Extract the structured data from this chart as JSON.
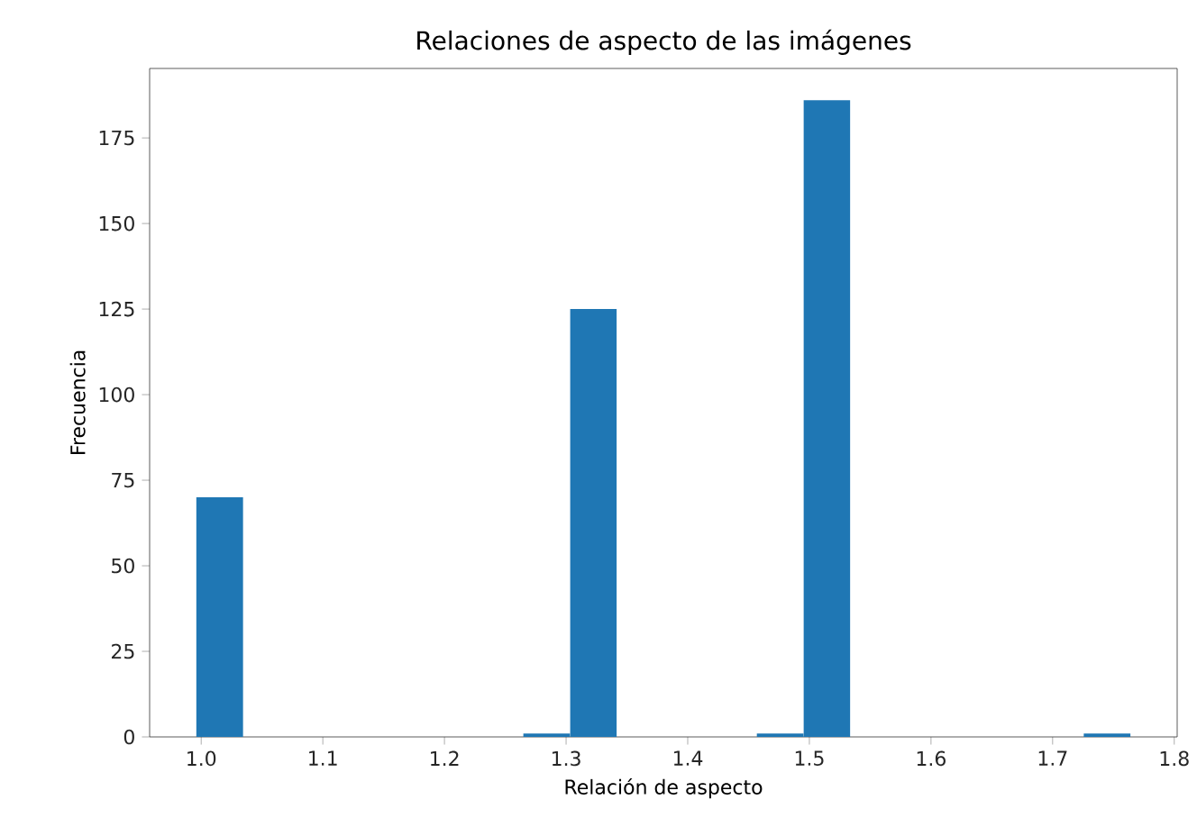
{
  "chart_data": {
    "type": "histogram",
    "title": "Relaciones de aspecto de las imágenes",
    "xlabel": "Relación de aspecto",
    "ylabel": "Frecuencia",
    "bins": [
      0.996,
      1.0344,
      1.0728,
      1.1112,
      1.1496,
      1.188,
      1.2264,
      1.2648,
      1.3032,
      1.3416,
      1.38,
      1.4184,
      1.4568,
      1.4952,
      1.5336,
      1.572,
      1.6104,
      1.6488,
      1.6872,
      1.7256,
      1.764
    ],
    "values": [
      70,
      0,
      0,
      0,
      0,
      0,
      0,
      1,
      125,
      0,
      0,
      0,
      1,
      186,
      0,
      0,
      0,
      0,
      0,
      1
    ],
    "color": "#1f77b4",
    "xlim": [
      0.9576,
      1.8024
    ],
    "ylim": [
      0,
      195.3
    ],
    "xticks": [
      {
        "value": 1,
        "label": "1.0"
      },
      1.1,
      1.2,
      1.3,
      1.4,
      1.5,
      1.6,
      1.7,
      1.8
    ],
    "yticks": [
      0,
      25,
      50,
      75,
      100,
      125,
      150,
      175
    ]
  }
}
